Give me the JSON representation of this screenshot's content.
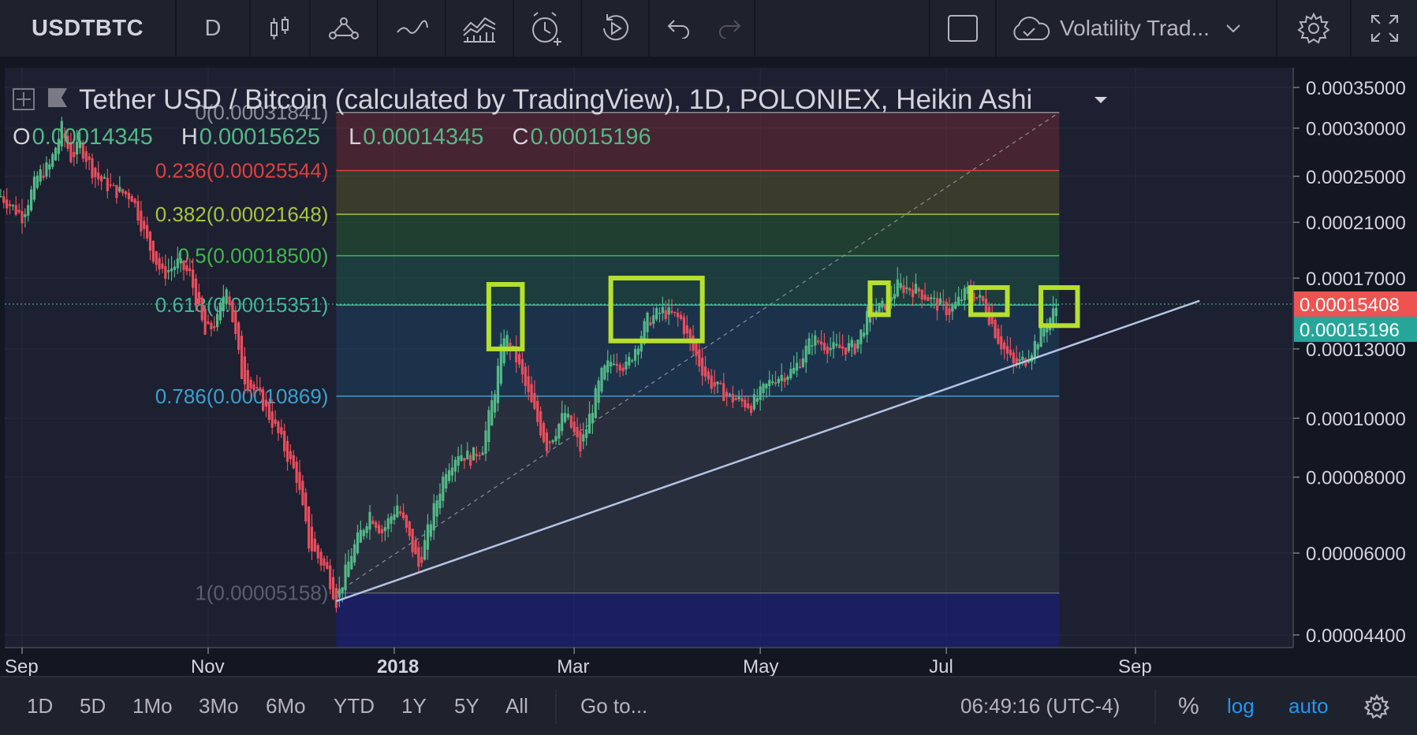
{
  "toolbar": {
    "symbol": "USDTBTC",
    "interval": "D",
    "layout_name": "Volatility Trad...",
    "icons": [
      "bar-style-icon",
      "indicators-icon",
      "compare-icon",
      "templates-icon",
      "alert-icon",
      "replay-icon",
      "undo-icon",
      "redo-icon",
      "fullscreen-box-icon",
      "cloud-icon",
      "chevron-down-icon",
      "gear-icon",
      "expand-icon"
    ]
  },
  "legend": {
    "title": "Tether USD / Bitcoin (calculated by TradingView), 1D, POLONIEX, Heikin Ashi",
    "o_label": "O",
    "o": "0.00014345",
    "h_label": "H",
    "h": "0.00015625",
    "l_label": "L",
    "l": "0.00014345",
    "c_label": "C",
    "c": "0.00015196"
  },
  "bottombar": {
    "ranges": [
      "1D",
      "5D",
      "1Mo",
      "3Mo",
      "6Mo",
      "YTD",
      "1Y",
      "5Y",
      "All"
    ],
    "goto": "Go to...",
    "clock": "06:49:16 (UTC-4)",
    "percent": "%",
    "log": "log",
    "auto": "auto"
  },
  "colors": {
    "background": "#131722",
    "up": "#53b987",
    "down": "#eb4d5c",
    "highlight_box": "#b7e02a",
    "trendline": "#b4c4e4",
    "last_price_label": "#ef5350",
    "close_label": "#26a69a"
  },
  "chart_data": {
    "type": "candlestick",
    "title": "Tether USD / Bitcoin (calculated by TradingView), 1D, POLONIEX, Heikin Ashi",
    "scale": "log",
    "ylim": [
      4.3e-05,
      0.00036
    ],
    "y_ticks": [
      "0.00035000",
      "0.00030000",
      "0.00025000",
      "0.00021000",
      "0.00017000",
      "0.00013000",
      "0.00010000",
      "0.00008000",
      "0.00006000",
      "0.00004400"
    ],
    "x_ticks": [
      "Sep",
      "Nov",
      "2018",
      "Mar",
      "May",
      "Jul",
      "Sep"
    ],
    "x_range": [
      "2017-08-25",
      "2018-10-05"
    ],
    "series": [
      {
        "name": "USDTBTC Heikin Ashi",
        "path": [
          [
            "2017-08-25",
            0.000232
          ],
          [
            "2017-09-01",
            0.000215
          ],
          [
            "2017-09-06",
            0.00025
          ],
          [
            "2017-09-10",
            0.00026
          ],
          [
            "2017-09-14",
            0.0003
          ],
          [
            "2017-09-17",
            0.000268
          ],
          [
            "2017-09-20",
            0.000282
          ],
          [
            "2017-09-25",
            0.00025
          ],
          [
            "2017-10-01",
            0.000237
          ],
          [
            "2017-10-07",
            0.000232
          ],
          [
            "2017-10-12",
            0.000195
          ],
          [
            "2017-10-17",
            0.000172
          ],
          [
            "2017-10-22",
            0.00018
          ],
          [
            "2017-10-26",
            0.000172
          ],
          [
            "2017-10-31",
            0.000137
          ],
          [
            "2017-11-04",
            0.000145
          ],
          [
            "2017-11-07",
            0.000167
          ],
          [
            "2017-11-12",
            0.000118
          ],
          [
            "2017-11-18",
            0.000108
          ],
          [
            "2017-11-24",
            9.4e-05
          ],
          [
            "2017-11-30",
            8e-05
          ],
          [
            "2017-12-04",
            6.2e-05
          ],
          [
            "2017-12-10",
            5.6e-05
          ],
          [
            "2017-12-13",
            5e-05
          ],
          [
            "2017-12-18",
            6e-05
          ],
          [
            "2017-12-24",
            7e-05
          ],
          [
            "2017-12-28",
            6.5e-05
          ],
          [
            "2018-01-02",
            7.2e-05
          ],
          [
            "2018-01-06",
            6.3e-05
          ],
          [
            "2018-01-09",
            5.7e-05
          ],
          [
            "2018-01-13",
            6.8e-05
          ],
          [
            "2018-01-18",
            8.3e-05
          ],
          [
            "2018-01-22",
            8.8e-05
          ],
          [
            "2018-01-26",
            8.6e-05
          ],
          [
            "2018-01-30",
            9e-05
          ],
          [
            "2018-02-03",
            0.000112
          ],
          [
            "2018-02-06",
            0.000138
          ],
          [
            "2018-02-10",
            0.000125
          ],
          [
            "2018-02-15",
            0.000105
          ],
          [
            "2018-02-20",
            9e-05
          ],
          [
            "2018-02-26",
            0.000102
          ],
          [
            "2018-03-03",
            8.9e-05
          ],
          [
            "2018-03-10",
            0.000118
          ],
          [
            "2018-03-14",
            0.000126
          ],
          [
            "2018-03-18",
            0.000121
          ],
          [
            "2018-03-25",
            0.000145
          ],
          [
            "2018-03-30",
            0.00015
          ],
          [
            "2018-04-05",
            0.000145
          ],
          [
            "2018-04-08",
            0.000132
          ],
          [
            "2018-04-14",
            0.000115
          ],
          [
            "2018-04-21",
            0.000108
          ],
          [
            "2018-04-28",
            0.000105
          ],
          [
            "2018-05-05",
            0.000116
          ],
          [
            "2018-05-12",
            0.00012
          ],
          [
            "2018-05-18",
            0.000135
          ],
          [
            "2018-05-25",
            0.00013
          ],
          [
            "2018-06-01",
            0.000131
          ],
          [
            "2018-06-06",
            0.00015
          ],
          [
            "2018-06-10",
            0.000152
          ],
          [
            "2018-06-15",
            0.000165
          ],
          [
            "2018-06-22",
            0.000162
          ],
          [
            "2018-06-27",
            0.000155
          ],
          [
            "2018-07-02",
            0.00015
          ],
          [
            "2018-07-08",
            0.000162
          ],
          [
            "2018-07-13",
            0.000155
          ],
          [
            "2018-07-18",
            0.000135
          ],
          [
            "2018-07-23",
            0.000122
          ],
          [
            "2018-07-27",
            0.000125
          ],
          [
            "2018-08-01",
            0.000138
          ],
          [
            "2018-08-06",
            0.000152
          ]
        ]
      }
    ],
    "fibonacci": {
      "start": "2017-12-13",
      "end": "2018-08-07",
      "levels": [
        {
          "label": "0(0.00031841)",
          "level": 0,
          "price": 0.00031841
        },
        {
          "label": "0.236(0.00025544)",
          "level": 0.236,
          "price": 0.00025544
        },
        {
          "label": "0.382(0.00021648)",
          "level": 0.382,
          "price": 0.00021648
        },
        {
          "label": "0.5(0.00018500)",
          "level": 0.5,
          "price": 0.000185
        },
        {
          "label": "0.618(0.00015351)",
          "level": 0.618,
          "price": 0.00015351
        },
        {
          "label": "0.786(0.00010869)",
          "level": 0.786,
          "price": 0.00010869
        },
        {
          "label": "1(0.00005158)",
          "level": 1,
          "price": 5.158e-05
        }
      ]
    },
    "trendline": {
      "from": [
        "2017-12-13",
        5e-05
      ],
      "to": [
        "2018-09-22",
        0.000156
      ]
    },
    "highlight_boxes": [
      {
        "from": "2018-02-01",
        "to": "2018-02-12",
        "top": 0.000166,
        "bottom": 0.00013
      },
      {
        "from": "2018-03-13",
        "to": "2018-04-12",
        "top": 0.00017,
        "bottom": 0.000134
      },
      {
        "from": "2018-06-06",
        "to": "2018-06-12",
        "top": 0.000167,
        "bottom": 0.000148
      },
      {
        "from": "2018-07-09",
        "to": "2018-07-21",
        "top": 0.000164,
        "bottom": 0.000148
      },
      {
        "from": "2018-08-01",
        "to": "2018-08-13",
        "top": 0.000164,
        "bottom": 0.000142
      }
    ],
    "price_labels": [
      {
        "price": 0.00015408,
        "label": "0.00015408",
        "role": "last"
      },
      {
        "price": 0.00015196,
        "label": "0.00015196",
        "role": "close"
      }
    ]
  }
}
